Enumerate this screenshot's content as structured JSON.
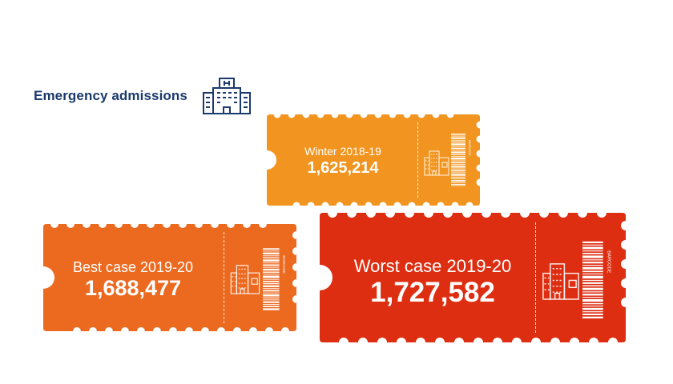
{
  "header": {
    "title": "Emergency admissions",
    "icon": "hospital-building-icon",
    "icon_color": "#1b3a6b"
  },
  "tickets": [
    {
      "id": "winter",
      "label": "Winter 2018-19",
      "value": "1,625,214",
      "color": "#f19520"
    },
    {
      "id": "best",
      "label": "Best case 2019-20",
      "value": "1,688,477",
      "color": "#ec6a20"
    },
    {
      "id": "worst",
      "label": "Worst case 2019-20",
      "value": "1,727,582",
      "color": "#de2e12"
    }
  ],
  "barcode_text": "BARCODE"
}
